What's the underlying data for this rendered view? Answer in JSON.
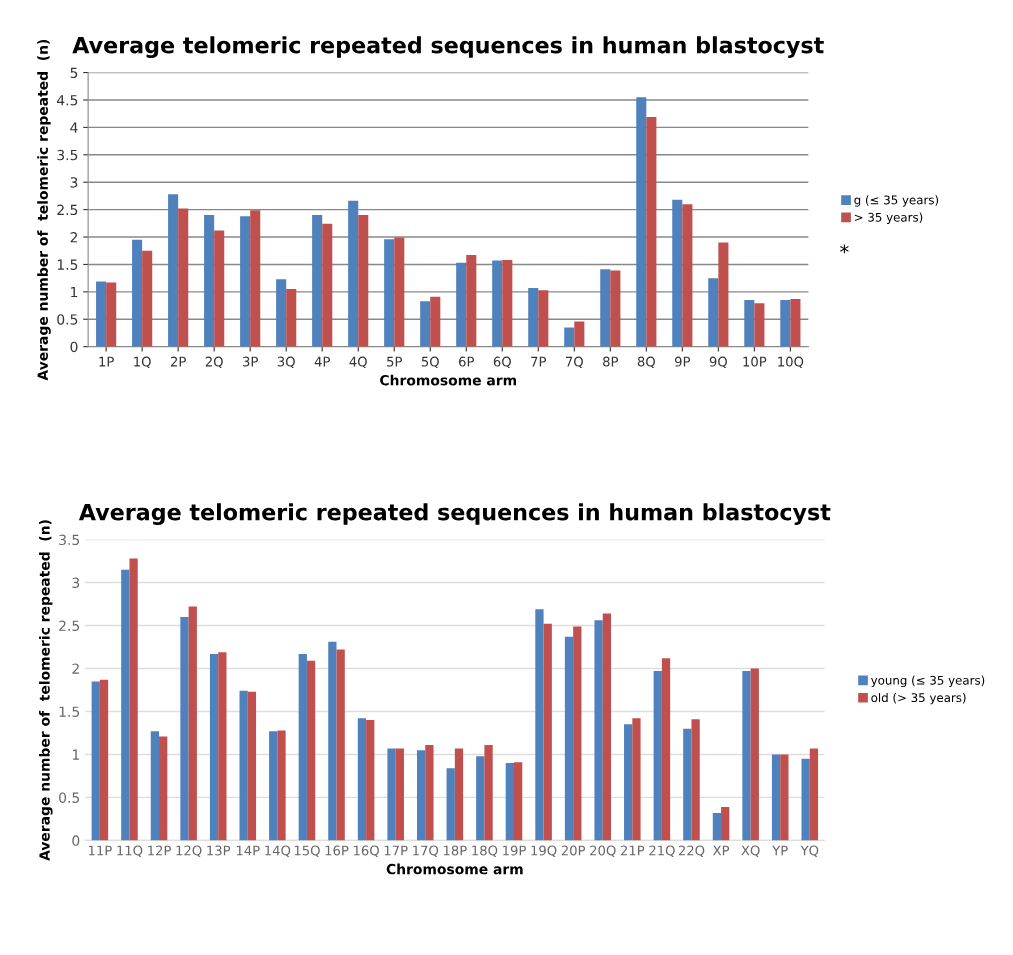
{
  "chart_data": [
    {
      "type": "bar",
      "title": "Average telomeric repeated sequences in human blastocyst",
      "xlabel": "Chromosome arm",
      "ylabel": "Average number of  telomeric repeated  (n)",
      "categories": [
        "1P",
        "1Q",
        "2P",
        "2Q",
        "3P",
        "3Q",
        "4P",
        "4Q",
        "5P",
        "5Q",
        "6P",
        "6Q",
        "7P",
        "7Q",
        "8P",
        "8Q",
        "9P",
        "9Q",
        "10P",
        "10Q"
      ],
      "series": [
        {
          "name": "g (≤ 35 years)",
          "color": "#4f81bd",
          "values": [
            1.19,
            1.95,
            2.78,
            2.4,
            2.38,
            1.23,
            2.4,
            2.66,
            1.96,
            0.83,
            1.53,
            1.57,
            1.07,
            0.35,
            1.41,
            4.55,
            2.68,
            1.25,
            0.85,
            0.85
          ]
        },
        {
          "name": "> 35 years)",
          "color": "#c0504d",
          "values": [
            1.17,
            1.75,
            2.52,
            2.12,
            2.49,
            1.05,
            2.24,
            2.4,
            1.99,
            0.91,
            1.67,
            1.58,
            1.03,
            0.46,
            1.39,
            4.19,
            2.6,
            1.9,
            0.79,
            0.87
          ]
        }
      ],
      "ylim": [
        0,
        5
      ],
      "yticks": [
        0,
        0.5,
        1,
        1.5,
        2,
        2.5,
        3,
        3.5,
        4,
        4.5,
        5
      ],
      "grid": "y",
      "legend": "right",
      "annotations": [
        "*"
      ]
    },
    {
      "type": "bar",
      "title": "Average telomeric repeated sequences in human blastocyst",
      "xlabel": "Chromosome arm",
      "ylabel": "Average number of  telomeric repeated  (n)",
      "categories": [
        "11P",
        "11Q",
        "12P",
        "12Q",
        "13P",
        "14P",
        "14Q",
        "15Q",
        "16P",
        "16Q",
        "17P",
        "17Q",
        "18P",
        "18Q",
        "19P",
        "19Q",
        "20P",
        "20Q",
        "21P",
        "21Q",
        "22Q",
        "XP",
        "XQ",
        "YP",
        "YQ"
      ],
      "series": [
        {
          "name": "young (≤ 35 years)",
          "color": "#4f81bd",
          "values": [
            1.85,
            3.15,
            1.27,
            2.6,
            2.17,
            1.74,
            1.27,
            2.17,
            2.31,
            1.42,
            1.07,
            1.05,
            0.84,
            0.98,
            0.9,
            2.69,
            2.37,
            2.56,
            1.35,
            1.97,
            1.3,
            0.32,
            1.97,
            1.0,
            0.95
          ]
        },
        {
          "name": "old (> 35 years)",
          "color": "#c0504d",
          "values": [
            1.87,
            3.28,
            1.21,
            2.72,
            2.19,
            1.73,
            1.28,
            2.09,
            2.22,
            1.4,
            1.07,
            1.11,
            1.07,
            1.11,
            0.91,
            2.52,
            2.49,
            2.64,
            1.42,
            2.12,
            1.41,
            0.39,
            2.0,
            1.0,
            1.07
          ]
        }
      ],
      "ylim": [
        0,
        3.5
      ],
      "yticks": [
        0,
        0.5,
        1,
        1.5,
        2,
        2.5,
        3,
        3.5
      ],
      "grid": "y",
      "legend": "right"
    }
  ]
}
